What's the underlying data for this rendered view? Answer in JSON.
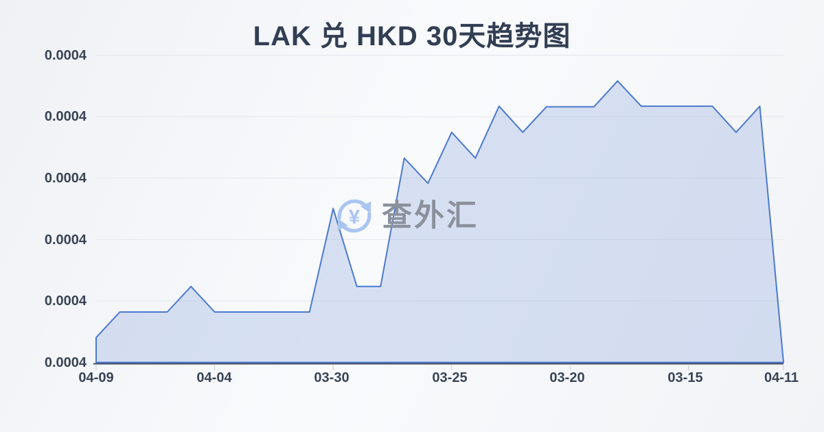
{
  "page": {
    "title": "LAK 兑 HKD 30天趋势图"
  },
  "watermark": {
    "icon": "currency-exchange-icon",
    "text": "查外汇"
  },
  "colors": {
    "title": "#323e53",
    "axis_label": "#3a4456",
    "gridline": "#e3e6eb",
    "axis_line": "#454f68",
    "tick_mark": "#c9cdd5",
    "line": "#4b79cf",
    "fill": "rgba(116,148,216,0.25)",
    "watermark_icon": "#a9c5f1",
    "watermark_text": "#8b919c"
  },
  "chart_data": {
    "type": "area",
    "title": "LAK 兑 HKD 30天趋势图",
    "x_tick_labels": [
      "04-09",
      "04-04",
      "03-30",
      "03-25",
      "03-20",
      "03-15",
      "04-11"
    ],
    "y_tick_labels": [
      "0.0004",
      "0.0004",
      "0.0004",
      "0.0004",
      "0.0004",
      "0.0004"
    ],
    "xlabel": "",
    "ylabel": "",
    "grid": true,
    "legend": false,
    "num_points": 30,
    "x_tick_every": 5,
    "values_norm": [
      0.081,
      0.164,
      0.164,
      0.164,
      0.247,
      0.164,
      0.164,
      0.164,
      0.164,
      0.164,
      0.501,
      0.247,
      0.247,
      0.665,
      0.583,
      0.749,
      0.665,
      0.834,
      0.749,
      0.832,
      0.832,
      0.832,
      0.916,
      0.834,
      0.834,
      0.834,
      0.834,
      0.749,
      0.834,
      0.0
    ],
    "value_axis_display": "all ticks rounded to 0.0004"
  }
}
